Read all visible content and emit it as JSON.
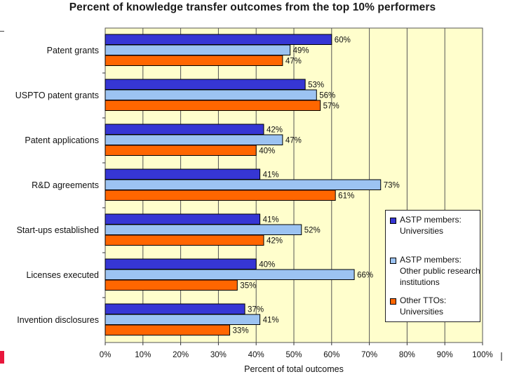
{
  "chart_data": {
    "type": "bar",
    "orientation": "horizontal",
    "title": "Percent of knowledge transfer outcomes from the top 10% performers",
    "xlabel": "Percent of total outcomes",
    "ylabel": "",
    "xlim": [
      0,
      100
    ],
    "grid": true,
    "legend_position": "right",
    "x_ticks": [
      "0%",
      "10%",
      "20%",
      "30%",
      "40%",
      "50%",
      "60%",
      "70%",
      "80%",
      "90%",
      "100%"
    ],
    "categories": [
      "Patent grants",
      "USPTO patent grants",
      "Patent applications",
      "R&D agreements",
      "Start-ups established",
      "Licenses executed",
      "Invention disclosures"
    ],
    "series": [
      {
        "name": "ASTP members: Universities",
        "color": "#3636d4",
        "values": [
          60,
          53,
          42,
          41,
          41,
          40,
          37
        ]
      },
      {
        "name": "ASTP members: Other public research institutions",
        "color": "#9cc3f2",
        "values": [
          49,
          56,
          47,
          73,
          52,
          66,
          41
        ]
      },
      {
        "name": "Other TTOs: Universities",
        "color": "#ff6600",
        "values": [
          47,
          57,
          40,
          61,
          42,
          35,
          33
        ]
      }
    ]
  }
}
